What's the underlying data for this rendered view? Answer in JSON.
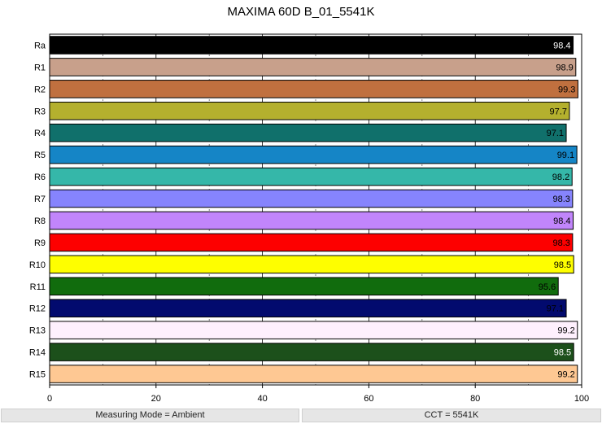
{
  "chart_data": {
    "type": "bar",
    "orientation": "horizontal",
    "title": "MAXIMA 60D B_01_5541K",
    "xlabel": "",
    "ylabel": "",
    "xlim": [
      0,
      100
    ],
    "xticks": [
      0,
      20,
      40,
      60,
      80,
      100
    ],
    "grid": true,
    "categories": [
      "Ra",
      "R1",
      "R2",
      "R3",
      "R4",
      "R5",
      "R6",
      "R7",
      "R8",
      "R9",
      "R10",
      "R11",
      "R12",
      "R13",
      "R14",
      "R15"
    ],
    "values": [
      98.4,
      98.9,
      99.3,
      97.7,
      97.1,
      99.1,
      98.2,
      98.3,
      98.4,
      98.3,
      98.5,
      95.6,
      97.1,
      99.2,
      98.5,
      99.2
    ],
    "colors": [
      "#000000",
      "#c8a08b",
      "#c0703f",
      "#b4b02e",
      "#10706b",
      "#1585c6",
      "#35b7a9",
      "#8684fd",
      "#c185fb",
      "#fd0000",
      "#fefe00",
      "#116c0d",
      "#020a6e",
      "#fef0fd",
      "#1c501b",
      "#fec893"
    ],
    "label_colors": [
      "#ffffff",
      "#000000",
      "#000000",
      "#000000",
      "#000000",
      "#000000",
      "#000000",
      "#000000",
      "#000000",
      "#000000",
      "#000000",
      "#000000",
      "#000000",
      "#000000",
      "#ffffff",
      "#000000"
    ]
  },
  "footer": {
    "measuring_mode": "Measuring Mode = Ambient",
    "cct": "CCT = 5541K"
  }
}
